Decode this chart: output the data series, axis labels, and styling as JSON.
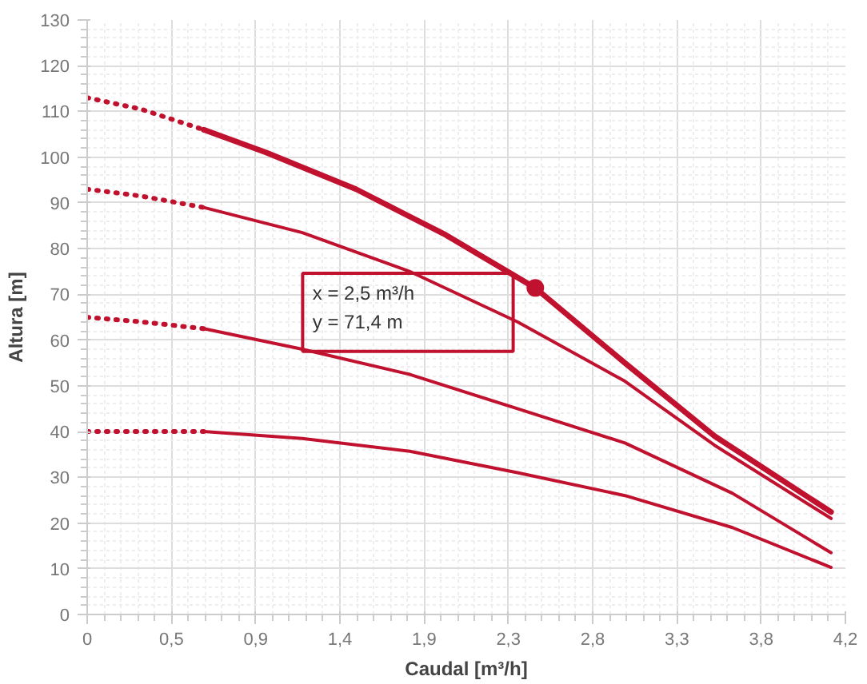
{
  "chart_data": {
    "type": "line",
    "xlabel": "Caudal [m³/h]",
    "ylabel": "Altura [m]",
    "xlim": [
      0,
      4.23
    ],
    "ylim": [
      0,
      130
    ],
    "xticks": [
      0,
      {
        "value": 0.47,
        "label": "0,5"
      },
      {
        "value": 0.94,
        "label": "0,9"
      },
      {
        "value": 1.41,
        "label": "1,4"
      },
      {
        "value": 1.88,
        "label": "1,9"
      },
      {
        "value": 2.35,
        "label": "2,3"
      },
      {
        "value": 2.82,
        "label": "2,8"
      },
      {
        "value": 3.29,
        "label": "3,3"
      },
      {
        "value": 3.76,
        "label": "3,8"
      },
      {
        "value": 4.23,
        "label": "4,2"
      }
    ],
    "yticks": [
      0,
      10,
      20,
      30,
      40,
      50,
      60,
      70,
      80,
      90,
      100,
      110,
      120,
      130
    ],
    "grid": true,
    "marker": "none",
    "series": [
      {
        "color": "#c0112f",
        "line_style": "solid",
        "x": [
          0.65,
          1.0,
          1.5,
          2.0,
          2.5,
          3.0,
          3.5,
          4.15
        ],
        "values": [
          106,
          101,
          93,
          83,
          71.4,
          55,
          39,
          22.4
        ]
      },
      {
        "color": "#c0112f",
        "line_style": "dotted",
        "x": [
          0,
          0.3,
          0.65
        ],
        "values": [
          113,
          110.5,
          106
        ]
      },
      {
        "color": "#c0112f",
        "line_style": "solid",
        "x": [
          0.65,
          1.2,
          1.8,
          2.4,
          3.0,
          3.5,
          4.15
        ],
        "values": [
          89,
          83.5,
          75,
          64,
          51,
          37,
          21
        ]
      },
      {
        "color": "#c0112f",
        "line_style": "dotted",
        "x": [
          0,
          0.3,
          0.65
        ],
        "values": [
          93,
          91.5,
          89
        ]
      },
      {
        "color": "#c0112f",
        "line_style": "solid",
        "x": [
          0.65,
          1.2,
          1.8,
          2.4,
          3.0,
          3.6,
          4.15
        ],
        "values": [
          62.5,
          58,
          52.5,
          45,
          37.5,
          26.5,
          13.5
        ]
      },
      {
        "color": "#c0112f",
        "line_style": "dotted",
        "x": [
          0,
          0.3,
          0.65
        ],
        "values": [
          65,
          64,
          62.5
        ]
      },
      {
        "color": "#c0112f",
        "line_style": "solid",
        "x": [
          0.65,
          1.2,
          1.8,
          2.4,
          3.0,
          3.6,
          4.15
        ],
        "values": [
          40,
          38.5,
          35.7,
          31,
          26,
          19,
          10.3
        ]
      },
      {
        "color": "#c0112f",
        "line_style": "dotted",
        "x": [
          0,
          0.3,
          0.65
        ],
        "values": [
          40,
          40,
          40
        ]
      },
      {
        "type": "scatter",
        "marker": "circle",
        "color": "#c0112f",
        "x": [
          2.5
        ],
        "values": [
          71.4
        ]
      }
    ],
    "annotations": [
      "x = 2,5 m³/h",
      "y = 71,4 m"
    ]
  }
}
